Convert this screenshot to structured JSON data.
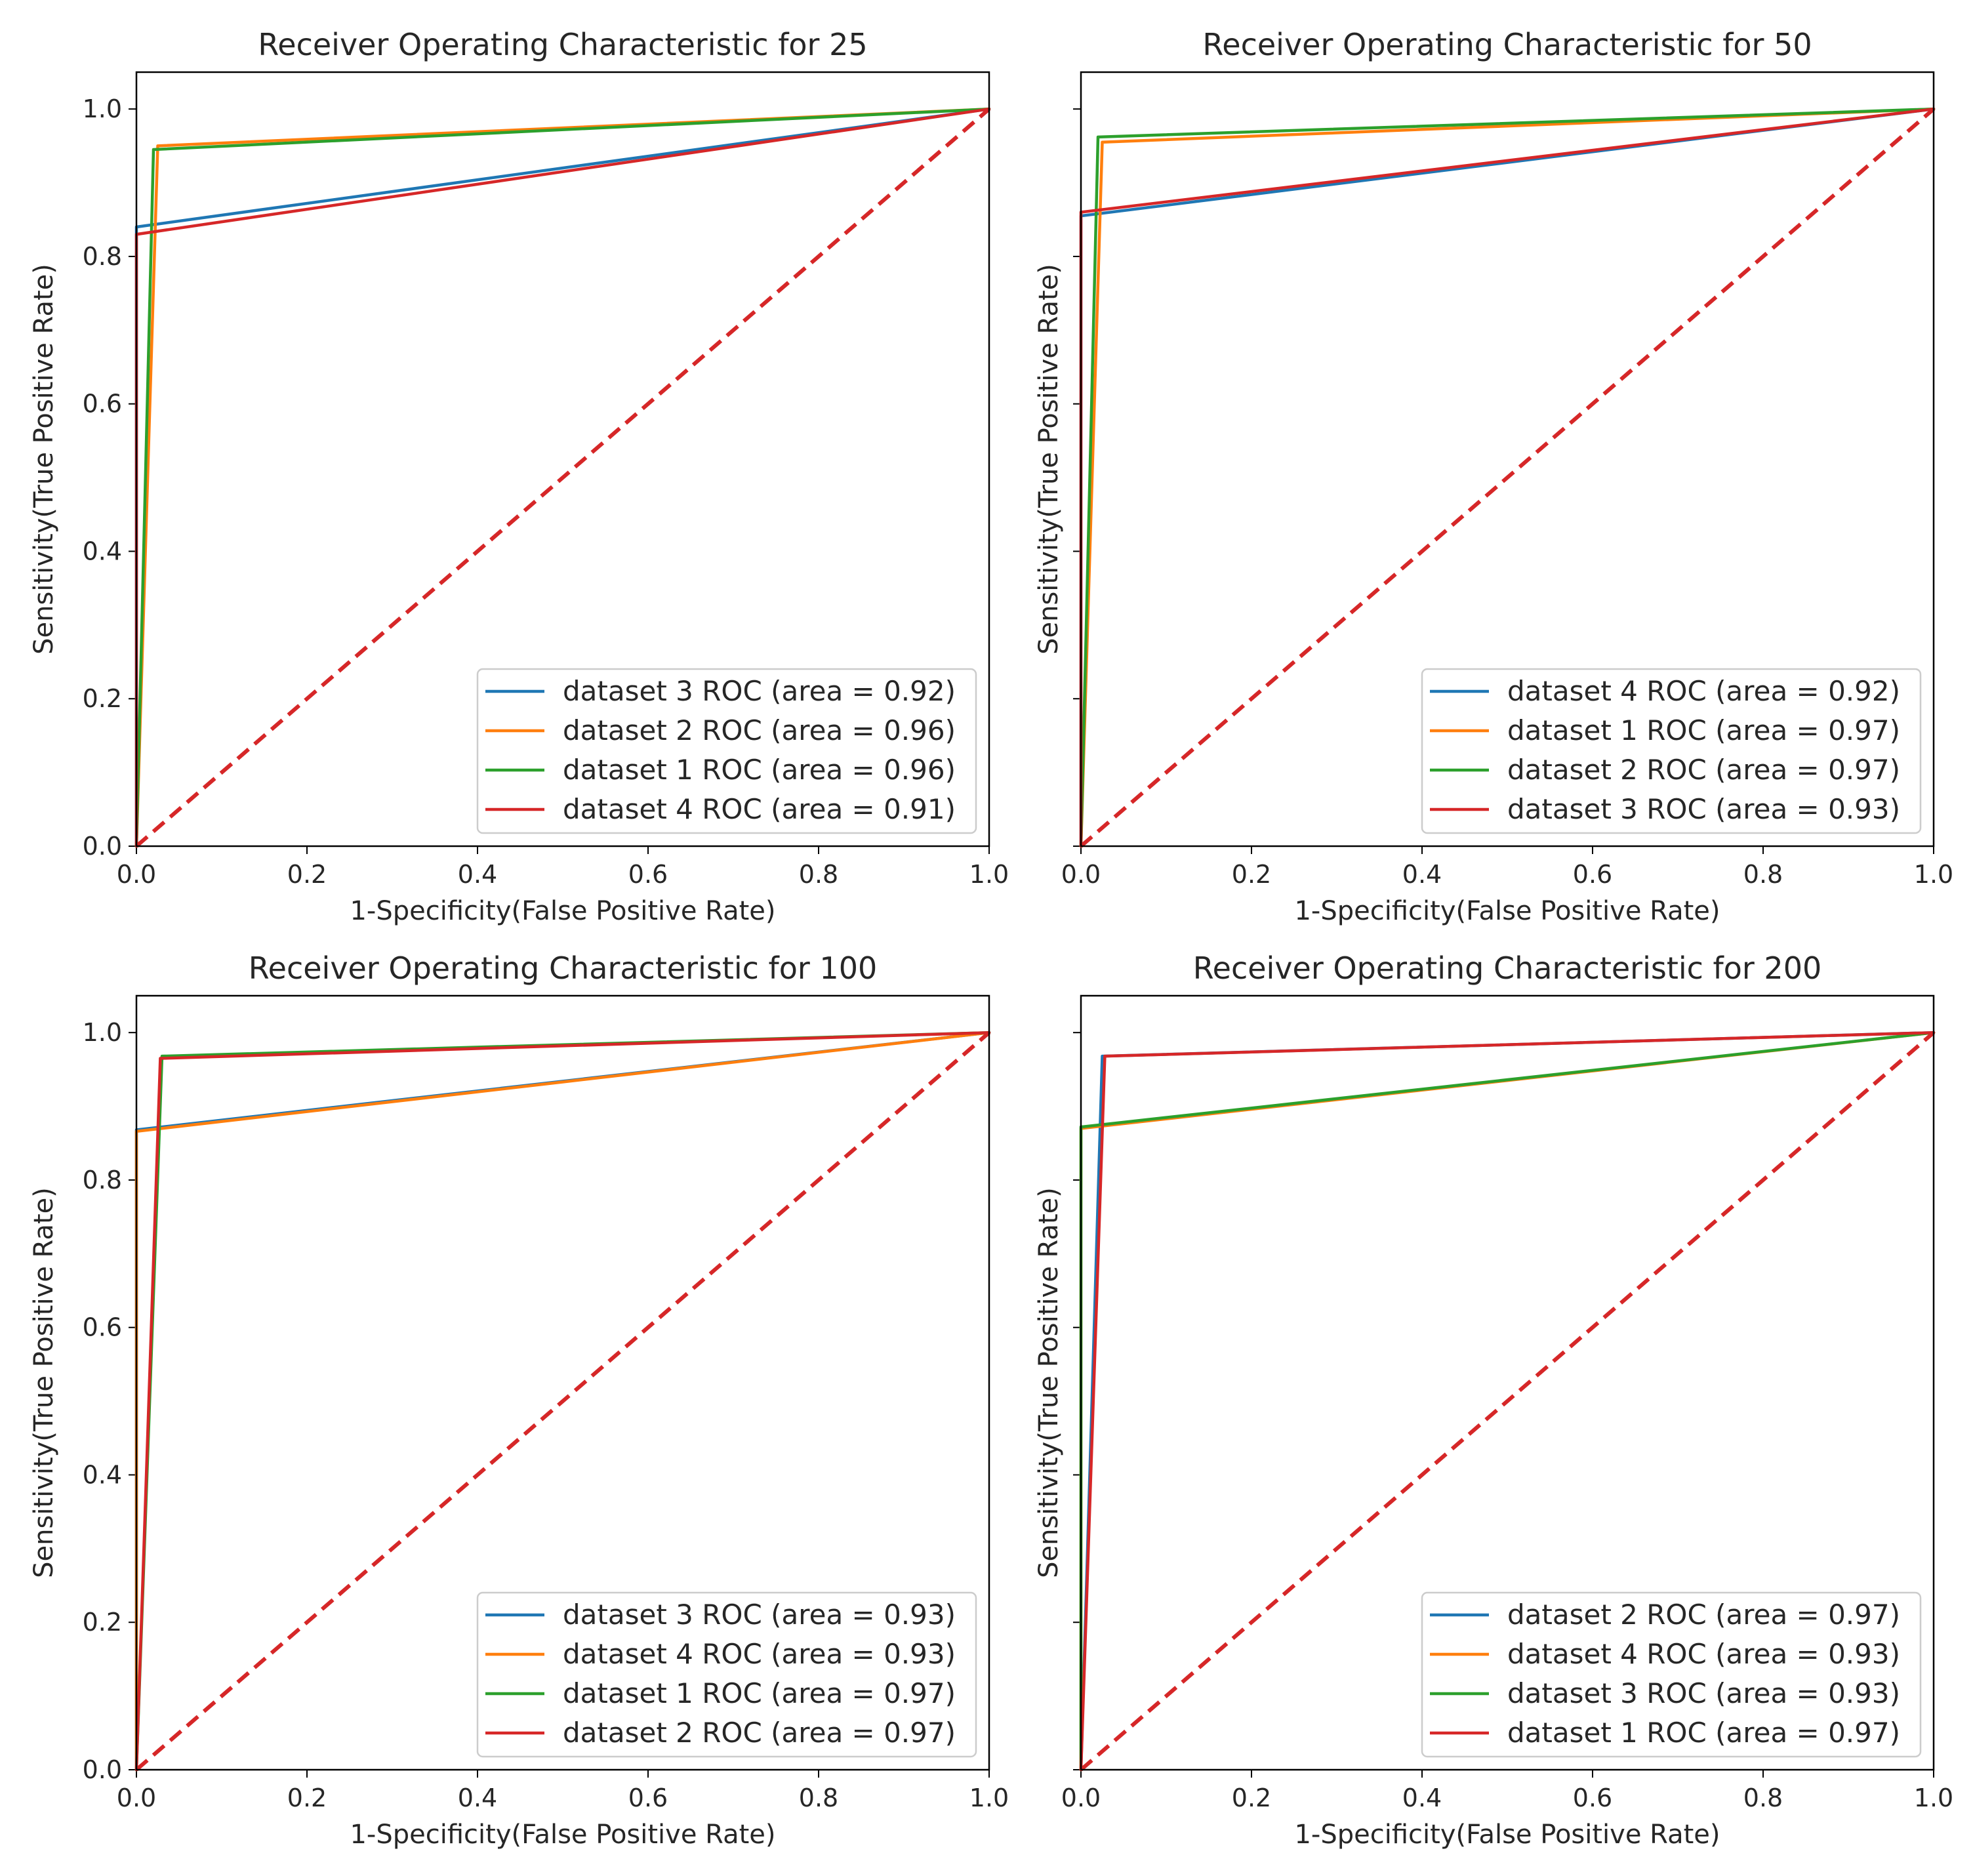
{
  "chart_data": [
    {
      "type": "line",
      "title": "Receiver Operating Characteristic for 25",
      "xlabel": "1-Specificity(False Positive Rate)",
      "ylabel": "Sensitivity(True Positive Rate)",
      "xlim": [
        0,
        1
      ],
      "ylim": [
        0,
        1.05
      ],
      "xticks": [
        "0.0",
        "0.2",
        "0.4",
        "0.6",
        "0.8",
        "1.0"
      ],
      "yticks": [
        "0.0",
        "0.2",
        "0.4",
        "0.6",
        "0.8",
        "1.0"
      ],
      "show_xticklabels": true,
      "show_yticklabels": true,
      "legend_position": "lower-right",
      "series": [
        {
          "name": "dataset 3 ROC (area = 0.92)",
          "color": "#1f77b4",
          "x": [
            0,
            0,
            1
          ],
          "y": [
            0,
            0.84,
            1
          ]
        },
        {
          "name": "dataset 2 ROC (area = 0.96)",
          "color": "#ff7f0e",
          "x": [
            0,
            0.025,
            1
          ],
          "y": [
            0,
            0.95,
            1
          ]
        },
        {
          "name": "dataset 1 ROC (area = 0.96)",
          "color": "#2ca02c",
          "x": [
            0,
            0.02,
            1
          ],
          "y": [
            0,
            0.945,
            1
          ]
        },
        {
          "name": "dataset 4 ROC (area = 0.91)",
          "color": "#d62728",
          "x": [
            0,
            0,
            1
          ],
          "y": [
            0,
            0.83,
            1
          ]
        }
      ],
      "diagonal": {
        "color": "#d62728",
        "style": "dashed",
        "x": [
          0,
          1
        ],
        "y": [
          0,
          1
        ]
      }
    },
    {
      "type": "line",
      "title": "Receiver Operating Characteristic for 50",
      "xlabel": "1-Specificity(False Positive Rate)",
      "ylabel": "Sensitivity(True Positive Rate)",
      "xlim": [
        0,
        1
      ],
      "ylim": [
        0,
        1.05
      ],
      "xticks": [
        "0.0",
        "0.2",
        "0.4",
        "0.6",
        "0.8",
        "1.0"
      ],
      "yticks": [
        "0.0",
        "0.2",
        "0.4",
        "0.6",
        "0.8",
        "1.0"
      ],
      "show_xticklabels": true,
      "show_yticklabels": false,
      "legend_position": "lower-right",
      "series": [
        {
          "name": "dataset 4 ROC (area = 0.92)",
          "color": "#1f77b4",
          "x": [
            0,
            0,
            1
          ],
          "y": [
            0,
            0.855,
            1
          ]
        },
        {
          "name": "dataset 1 ROC (area = 0.97)",
          "color": "#ff7f0e",
          "x": [
            0,
            0.025,
            1
          ],
          "y": [
            0,
            0.955,
            1
          ]
        },
        {
          "name": "dataset 2 ROC (area = 0.97)",
          "color": "#2ca02c",
          "x": [
            0,
            0.02,
            1
          ],
          "y": [
            0,
            0.962,
            1
          ]
        },
        {
          "name": "dataset 3 ROC (area = 0.93)",
          "color": "#d62728",
          "x": [
            0,
            0,
            1
          ],
          "y": [
            0,
            0.86,
            1
          ]
        }
      ],
      "diagonal": {
        "color": "#d62728",
        "style": "dashed",
        "x": [
          0,
          1
        ],
        "y": [
          0,
          1
        ]
      }
    },
    {
      "type": "line",
      "title": "Receiver Operating Characteristic for 100",
      "xlabel": "1-Specificity(False Positive Rate)",
      "ylabel": "Sensitivity(True Positive Rate)",
      "xlim": [
        0,
        1
      ],
      "ylim": [
        0,
        1.05
      ],
      "xticks": [
        "0.0",
        "0.2",
        "0.4",
        "0.6",
        "0.8",
        "1.0"
      ],
      "yticks": [
        "0.0",
        "0.2",
        "0.4",
        "0.6",
        "0.8",
        "1.0"
      ],
      "show_xticklabels": true,
      "show_yticklabels": true,
      "legend_position": "lower-right",
      "series": [
        {
          "name": "dataset 3 ROC (area = 0.93)",
          "color": "#1f77b4",
          "x": [
            0,
            0,
            1
          ],
          "y": [
            0,
            0.868,
            1
          ]
        },
        {
          "name": "dataset 4 ROC (area = 0.93)",
          "color": "#ff7f0e",
          "x": [
            0,
            0,
            1
          ],
          "y": [
            0,
            0.866,
            1
          ]
        },
        {
          "name": "dataset 1 ROC (area = 0.97)",
          "color": "#2ca02c",
          "x": [
            0,
            0.03,
            1
          ],
          "y": [
            0,
            0.968,
            1
          ]
        },
        {
          "name": "dataset 2 ROC (area = 0.97)",
          "color": "#d62728",
          "x": [
            0,
            0.028,
            1
          ],
          "y": [
            0,
            0.965,
            1
          ]
        }
      ],
      "diagonal": {
        "color": "#d62728",
        "style": "dashed",
        "x": [
          0,
          1
        ],
        "y": [
          0,
          1
        ]
      }
    },
    {
      "type": "line",
      "title": "Receiver Operating Characteristic for 200",
      "xlabel": "1-Specificity(False Positive Rate)",
      "ylabel": "Sensitivity(True Positive Rate)",
      "xlim": [
        0,
        1
      ],
      "ylim": [
        0,
        1.05
      ],
      "xticks": [
        "0.0",
        "0.2",
        "0.4",
        "0.6",
        "0.8",
        "1.0"
      ],
      "yticks": [
        "0.0",
        "0.2",
        "0.4",
        "0.6",
        "0.8",
        "1.0"
      ],
      "show_xticklabels": true,
      "show_yticklabels": false,
      "legend_position": "lower-right",
      "series": [
        {
          "name": "dataset 2 ROC (area = 0.97)",
          "color": "#1f77b4",
          "x": [
            0,
            0.025,
            1
          ],
          "y": [
            0,
            0.968,
            1
          ]
        },
        {
          "name": "dataset 4 ROC (area = 0.93)",
          "color": "#ff7f0e",
          "x": [
            0,
            0,
            1
          ],
          "y": [
            0,
            0.87,
            1
          ]
        },
        {
          "name": "dataset 3 ROC (area = 0.93)",
          "color": "#2ca02c",
          "x": [
            0,
            0,
            1
          ],
          "y": [
            0,
            0.872,
            1
          ]
        },
        {
          "name": "dataset 1 ROC (area = 0.97)",
          "color": "#d62728",
          "x": [
            0,
            0.028,
            1
          ],
          "y": [
            0,
            0.968,
            1
          ]
        }
      ],
      "diagonal": {
        "color": "#d62728",
        "style": "dashed",
        "x": [
          0,
          1
        ],
        "y": [
          0,
          1
        ]
      }
    }
  ]
}
